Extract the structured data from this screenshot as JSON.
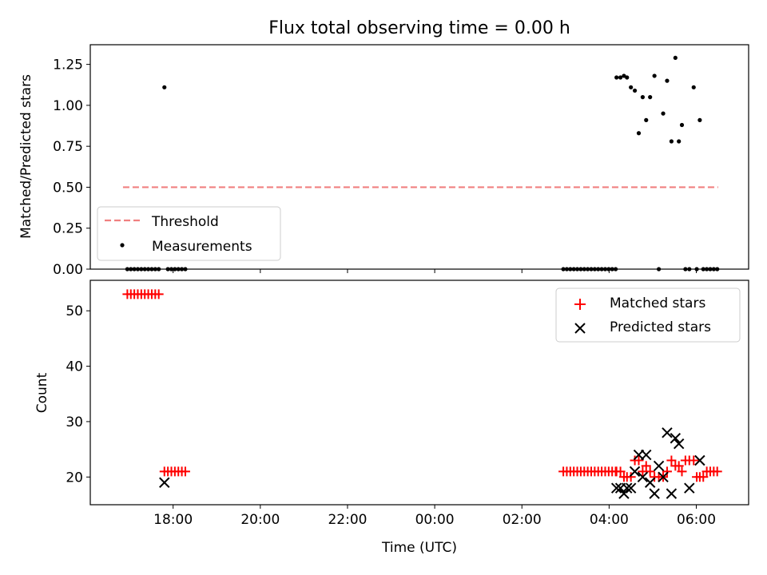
{
  "title": "Flux total observing time = 0.00 h",
  "colors": {
    "threshold": "#f08080",
    "measurement": "#000000",
    "matched": "#ff0000",
    "predicted": "#000000"
  },
  "x_axis": {
    "label": "Time (UTC)",
    "range_hours": [
      16.1,
      31.2
    ],
    "ticks": [
      {
        "h": 18,
        "label": "18:00"
      },
      {
        "h": 20,
        "label": "20:00"
      },
      {
        "h": 22,
        "label": "22:00"
      },
      {
        "h": 24,
        "label": "00:00"
      },
      {
        "h": 26,
        "label": "02:00"
      },
      {
        "h": 28,
        "label": "04:00"
      },
      {
        "h": 30,
        "label": "06:00"
      }
    ]
  },
  "chart_data": [
    {
      "type": "scatter",
      "panel": "top",
      "ylabel": "Matched/Predicted stars",
      "ylim": [
        0,
        1.37
      ],
      "yticks": [
        {
          "v": 0.0,
          "label": "0.00"
        },
        {
          "v": 0.25,
          "label": "0.25"
        },
        {
          "v": 0.5,
          "label": "0.50"
        },
        {
          "v": 0.75,
          "label": "0.75"
        },
        {
          "v": 1.0,
          "label": "1.00"
        },
        {
          "v": 1.25,
          "label": "1.25"
        }
      ],
      "legend": {
        "placement": "lower-left",
        "entries": [
          "Threshold",
          "Measurements"
        ]
      },
      "threshold": {
        "name": "Threshold",
        "value": 0.5,
        "x_range": [
          16.85,
          30.5
        ]
      },
      "measurements": {
        "name": "Measurements",
        "x": [
          16.95,
          17.03,
          17.11,
          17.19,
          17.27,
          17.35,
          17.43,
          17.51,
          17.59,
          17.67,
          17.8,
          17.88,
          17.96,
          18.04,
          18.12,
          18.2,
          18.28,
          26.95,
          27.03,
          27.11,
          27.19,
          27.27,
          27.35,
          27.43,
          27.51,
          27.59,
          27.67,
          27.75,
          27.83,
          27.91,
          27.99,
          28.07,
          28.15,
          28.17,
          28.26,
          28.34,
          28.41,
          28.5,
          28.59,
          28.68,
          28.77,
          28.85,
          28.94,
          29.04,
          29.14,
          29.24,
          29.33,
          29.43,
          29.52,
          29.6,
          29.67,
          29.75,
          29.84,
          29.94,
          30.01,
          30.08,
          30.16,
          30.24,
          30.32,
          30.4,
          30.48
        ],
        "y": [
          0,
          0,
          0,
          0,
          0,
          0,
          0,
          0,
          0,
          0,
          1.11,
          0,
          0,
          0,
          0,
          0,
          0,
          0,
          0,
          0,
          0,
          0,
          0,
          0,
          0,
          0,
          0,
          0,
          0,
          0,
          0,
          0,
          0,
          1.17,
          1.17,
          1.18,
          1.17,
          1.11,
          1.09,
          0.83,
          1.05,
          0.91,
          1.05,
          1.18,
          0,
          0.95,
          1.15,
          0.78,
          1.29,
          0.78,
          0.88,
          0,
          0,
          1.11,
          0,
          0.91,
          0,
          0,
          0,
          0,
          0
        ]
      }
    },
    {
      "type": "scatter",
      "panel": "bottom",
      "xlabel": "Time (UTC)",
      "ylabel": "Count",
      "ylim": [
        15,
        55.5
      ],
      "yticks": [
        {
          "v": 20,
          "label": "20"
        },
        {
          "v": 30,
          "label": "30"
        },
        {
          "v": 40,
          "label": "40"
        },
        {
          "v": 50,
          "label": "50"
        }
      ],
      "legend": {
        "placement": "upper-right",
        "entries": [
          "Matched stars",
          "Predicted stars"
        ]
      },
      "series": [
        {
          "name": "Matched stars",
          "marker": "plus",
          "x": [
            16.95,
            17.03,
            17.11,
            17.19,
            17.27,
            17.35,
            17.43,
            17.51,
            17.59,
            17.67,
            17.8,
            17.88,
            17.96,
            18.04,
            18.12,
            18.2,
            18.28,
            26.95,
            27.03,
            27.11,
            27.19,
            27.27,
            27.35,
            27.43,
            27.51,
            27.59,
            27.67,
            27.75,
            27.83,
            27.91,
            27.99,
            28.07,
            28.15,
            28.17,
            28.26,
            28.34,
            28.41,
            28.5,
            28.59,
            28.68,
            28.77,
            28.85,
            28.94,
            29.04,
            29.14,
            29.24,
            29.33,
            29.43,
            29.52,
            29.6,
            29.67,
            29.75,
            29.84,
            29.94,
            30.01,
            30.08,
            30.16,
            30.24,
            30.32,
            30.4,
            30.48
          ],
          "y": [
            53,
            53,
            53,
            53,
            53,
            53,
            53,
            53,
            53,
            53,
            21,
            21,
            21,
            21,
            21,
            21,
            21,
            21,
            21,
            21,
            21,
            21,
            21,
            21,
            21,
            21,
            21,
            21,
            21,
            21,
            21,
            21,
            21,
            21,
            21,
            20,
            20,
            20,
            23,
            23,
            21,
            22,
            21,
            20,
            20,
            20,
            21,
            23,
            22,
            22,
            21,
            23,
            23,
            23,
            20,
            20,
            20,
            21,
            21,
            21,
            21
          ]
        },
        {
          "name": "Predicted stars",
          "marker": "x",
          "x": [
            17.8,
            28.17,
            28.26,
            28.34,
            28.41,
            28.5,
            28.59,
            28.68,
            28.77,
            28.85,
            28.94,
            29.04,
            29.14,
            29.24,
            29.33,
            29.43,
            29.52,
            29.6,
            29.84,
            30.08
          ],
          "y": [
            19,
            18,
            18,
            17,
            18,
            18,
            21,
            24,
            20,
            24,
            19,
            17,
            22,
            20,
            28,
            17,
            27,
            26,
            18,
            23
          ]
        }
      ]
    }
  ]
}
